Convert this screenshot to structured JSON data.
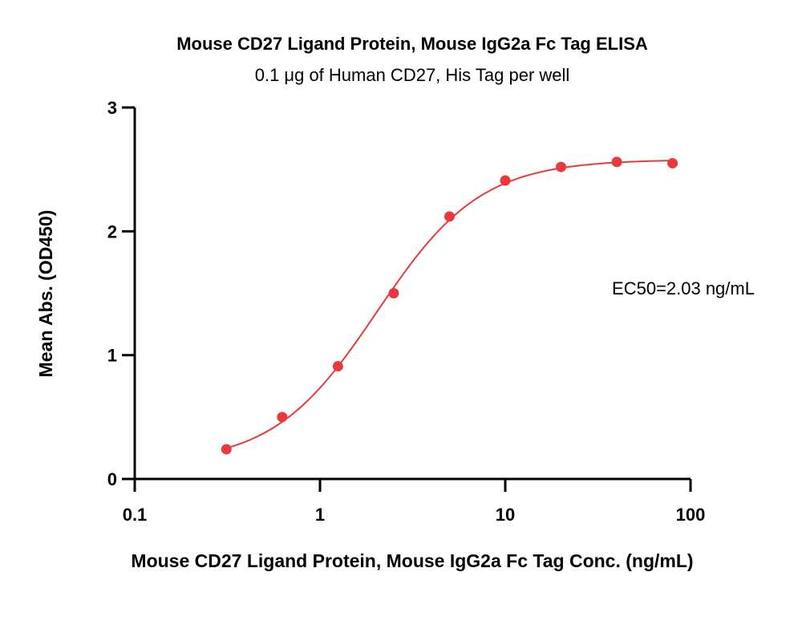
{
  "chart_data": {
    "type": "scatter",
    "title": "Mouse CD27 Ligand Protein, Mouse IgG2a Fc Tag ELISA",
    "subtitle": "0.1 μg of Human CD27, His Tag per well",
    "xlabel": "Mouse CD27 Ligand Protein, Mouse IgG2a Fc Tag Conc. (ng/mL)",
    "ylabel": "Mean Abs. (OD450)",
    "x_scale": "log",
    "xlim": [
      0.1,
      100
    ],
    "ylim": [
      0,
      3
    ],
    "x_ticks": [
      {
        "value": 0.1,
        "label": "0.1"
      },
      {
        "value": 1,
        "label": "1"
      },
      {
        "value": 10,
        "label": "10"
      },
      {
        "value": 100,
        "label": "100"
      }
    ],
    "y_ticks": [
      {
        "value": 0,
        "label": "0"
      },
      {
        "value": 1,
        "label": "1"
      },
      {
        "value": 2,
        "label": "2"
      },
      {
        "value": 3,
        "label": "3"
      }
    ],
    "grid": false,
    "series": [
      {
        "color": "#e8393f",
        "x": [
          0.3125,
          0.625,
          1.25,
          2.5,
          5,
          10,
          20,
          40,
          80
        ],
        "y": [
          0.24,
          0.5,
          0.91,
          1.5,
          2.12,
          2.41,
          2.52,
          2.56,
          2.55
        ]
      }
    ],
    "fit": {
      "model": "4PL",
      "bottom": 0.12,
      "top": 2.58,
      "ec50": 2.03,
      "hill": 1.55,
      "color": "#e8393f"
    },
    "annotation": "EC50=2.03 ng/mL"
  }
}
